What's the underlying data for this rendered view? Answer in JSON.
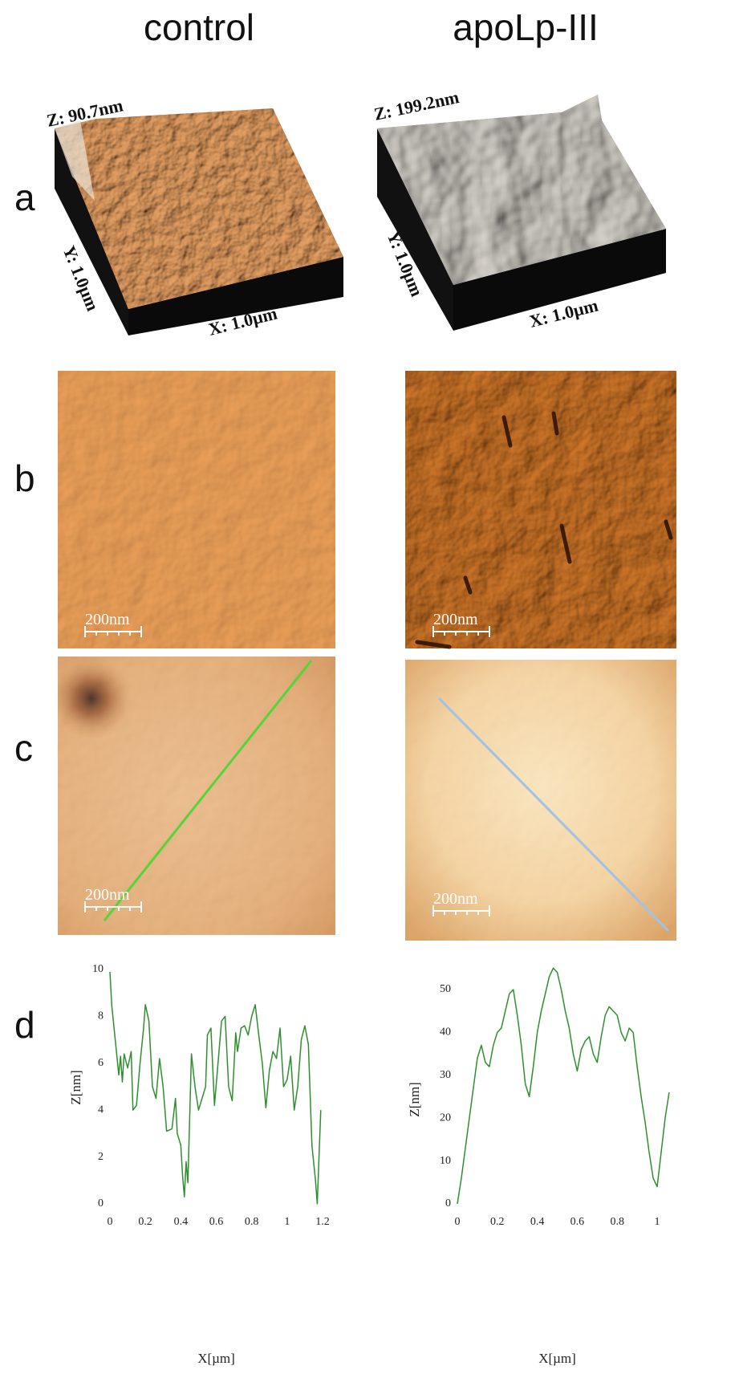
{
  "columns": [
    "control",
    "apoLp-III"
  ],
  "row_labels": [
    "a",
    "b",
    "c",
    "d"
  ],
  "panel_a": [
    {
      "z_label": "Z: 90.7nm",
      "y_label": "Y: 1.0µm",
      "x_label": "X: 1.0µm"
    },
    {
      "z_label": "Z: 199.2nm",
      "y_label": "Y: 1.0µm",
      "x_label": "X: 1.0µm"
    }
  ],
  "scale_bars": [
    "200nm",
    "200nm",
    "200nm",
    "200nm"
  ],
  "chart_data": [
    {
      "type": "line",
      "x_label": "X[µm]",
      "y_label": "Z[nm]",
      "x": [
        0,
        0.01,
        0.03,
        0.05,
        0.06,
        0.07,
        0.08,
        0.1,
        0.12,
        0.13,
        0.15,
        0.17,
        0.19,
        0.2,
        0.22,
        0.24,
        0.26,
        0.28,
        0.3,
        0.32,
        0.35,
        0.37,
        0.38,
        0.4,
        0.41,
        0.42,
        0.43,
        0.44,
        0.46,
        0.48,
        0.5,
        0.52,
        0.54,
        0.55,
        0.57,
        0.59,
        0.61,
        0.63,
        0.65,
        0.67,
        0.69,
        0.71,
        0.72,
        0.74,
        0.76,
        0.78,
        0.8,
        0.82,
        0.84,
        0.86,
        0.88,
        0.9,
        0.92,
        0.94,
        0.96,
        0.98,
        1.0,
        1.02,
        1.04,
        1.06,
        1.08,
        1.1,
        1.12,
        1.14,
        1.16,
        1.17,
        1.18,
        1.19
      ],
      "series": [
        {
          "color": "#2f8f2f",
          "values": [
            9.9,
            8.5,
            7,
            5.5,
            6.3,
            5.2,
            6.4,
            5.8,
            6.5,
            4,
            4.2,
            6,
            7.5,
            8.5,
            7.8,
            5,
            4.5,
            6.2,
            5,
            3.1,
            3.2,
            4.5,
            3,
            2.5,
            1.2,
            0.3,
            1.8,
            0.9,
            6.4,
            5,
            4,
            4.5,
            5,
            7.2,
            7.5,
            4.2,
            6,
            7.8,
            8,
            5,
            4.4,
            7.3,
            6.5,
            7.5,
            7.6,
            7.2,
            8,
            8.5,
            7.2,
            6,
            4.1,
            5.7,
            6.5,
            6.2,
            7.5,
            5,
            5.3,
            6.3,
            4,
            5,
            7,
            7.6,
            6.8,
            2.5,
            1,
            0,
            2,
            4
          ]
        }
      ],
      "xlim": [
        0,
        1.2
      ],
      "ylim": [
        0,
        10
      ],
      "xticks": [
        0,
        0.2,
        0.4,
        0.6,
        0.8,
        1,
        1.2
      ],
      "yticks": [
        0,
        2,
        4,
        6,
        8,
        10
      ]
    },
    {
      "type": "line",
      "x_label": "X[µm]",
      "y_label": "Z[nm]",
      "x": [
        0,
        0.02,
        0.04,
        0.06,
        0.08,
        0.1,
        0.12,
        0.14,
        0.16,
        0.18,
        0.2,
        0.22,
        0.24,
        0.26,
        0.28,
        0.3,
        0.32,
        0.34,
        0.36,
        0.38,
        0.4,
        0.42,
        0.44,
        0.46,
        0.48,
        0.5,
        0.52,
        0.54,
        0.56,
        0.58,
        0.6,
        0.62,
        0.64,
        0.66,
        0.68,
        0.7,
        0.72,
        0.74,
        0.76,
        0.78,
        0.8,
        0.82,
        0.84,
        0.86,
        0.88,
        0.9,
        0.92,
        0.94,
        0.96,
        0.98,
        1.0,
        1.02,
        1.04,
        1.06
      ],
      "series": [
        {
          "color": "#2f8f2f",
          "values": [
            0,
            6,
            13,
            20,
            27,
            34,
            37,
            33,
            32,
            37,
            40,
            41,
            45,
            49,
            50,
            44,
            37,
            28,
            25,
            32,
            40,
            45,
            49,
            53,
            55,
            54,
            50,
            45,
            41,
            35,
            31,
            36,
            38,
            39,
            35,
            33,
            39,
            44,
            46,
            45,
            44,
            40,
            38,
            41,
            40,
            32,
            25,
            19,
            12,
            6,
            4,
            12,
            20,
            26
          ]
        }
      ],
      "xlim": [
        0,
        1
      ],
      "ylim": [
        0,
        50
      ],
      "xticks": [
        0,
        0.2,
        0.4,
        0.6,
        0.8,
        1
      ],
      "yticks": [
        0,
        10,
        20,
        30,
        40,
        50
      ]
    }
  ]
}
